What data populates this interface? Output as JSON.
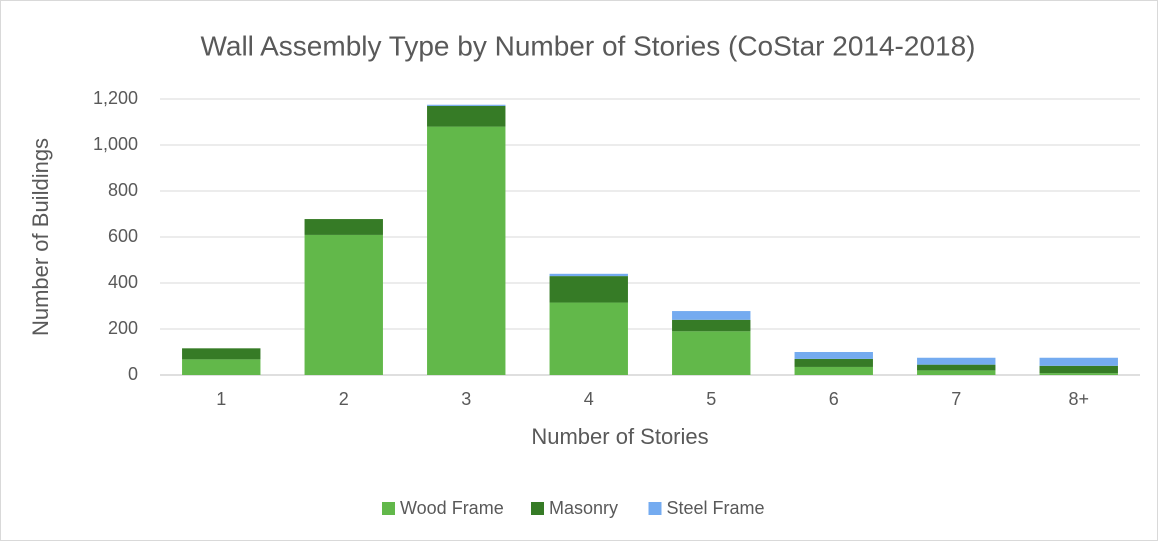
{
  "chart_data": {
    "type": "stacked-bar",
    "title": "Wall Assembly Type by Number of Stories (CoStar 2014-2018)",
    "x_label": "Number of Stories",
    "y_label": "Number of Buildings",
    "categories": [
      "1",
      "2",
      "3",
      "4",
      "5",
      "6",
      "7",
      "8+"
    ],
    "series": [
      {
        "name": "Wood Frame",
        "color": "#62b84a",
        "values": [
          68,
          609,
          1080,
          315,
          190,
          35,
          20,
          8
        ]
      },
      {
        "name": "Masonry",
        "color": "#367b26",
        "values": [
          48,
          69,
          90,
          115,
          50,
          35,
          25,
          32
        ]
      },
      {
        "name": "Steel Frame",
        "color": "#74abf0",
        "values": [
          0,
          0,
          5,
          10,
          38,
          30,
          30,
          35
        ]
      }
    ],
    "ylim": [
      0,
      1200
    ],
    "yticks": [
      0,
      200,
      400,
      600,
      800,
      {
        "value": 1000,
        "label": "1,000"
      },
      {
        "value": 1200,
        "label": "1,200"
      }
    ],
    "grid": true,
    "legend": "bottom"
  }
}
